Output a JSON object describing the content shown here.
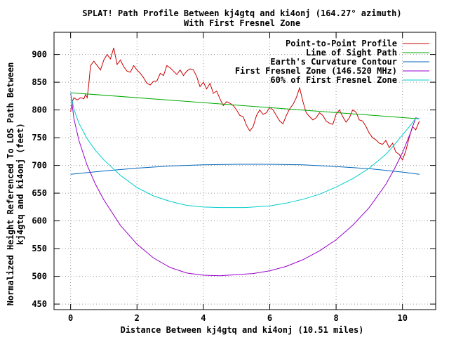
{
  "chart_data": {
    "type": "line",
    "title": "SPLAT! Path Profile Between kj4gtq and ki4onj (164.27° azimuth)",
    "subtitle": "With First Fresnel Zone",
    "xlabel": "Distance Between kj4gtq and ki4onj (10.51 miles)",
    "ylabel_line1": "Normalized Height Referenced To LOS Path Between",
    "ylabel_line2": "kj4gtq and ki4onj (feet)",
    "xlim": [
      -0.5,
      11.0
    ],
    "ylim": [
      440,
      940
    ],
    "xticks": [
      0,
      2,
      4,
      6,
      8,
      10
    ],
    "yticks": [
      450,
      500,
      550,
      600,
      650,
      700,
      750,
      800,
      850,
      900
    ],
    "grid": true,
    "legend_position": "top-right",
    "series": [
      {
        "name": "Point-to-Point Profile",
        "color": "#cc0000",
        "x": [
          0.0,
          0.05,
          0.1,
          0.15,
          0.2,
          0.3,
          0.4,
          0.45,
          0.5,
          0.55,
          0.6,
          0.7,
          0.8,
          0.9,
          1.0,
          1.1,
          1.2,
          1.3,
          1.4,
          1.5,
          1.6,
          1.7,
          1.8,
          1.9,
          2.0,
          2.1,
          2.2,
          2.3,
          2.4,
          2.5,
          2.6,
          2.7,
          2.8,
          2.9,
          3.0,
          3.1,
          3.2,
          3.3,
          3.4,
          3.5,
          3.6,
          3.7,
          3.8,
          3.9,
          4.0,
          4.1,
          4.2,
          4.3,
          4.4,
          4.5,
          4.6,
          4.7,
          4.8,
          4.9,
          5.0,
          5.1,
          5.2,
          5.3,
          5.4,
          5.5,
          5.6,
          5.7,
          5.8,
          5.9,
          6.0,
          6.1,
          6.2,
          6.3,
          6.4,
          6.5,
          6.6,
          6.7,
          6.8,
          6.9,
          7.0,
          7.1,
          7.2,
          7.3,
          7.4,
          7.5,
          7.6,
          7.7,
          7.8,
          7.9,
          8.0,
          8.1,
          8.2,
          8.3,
          8.4,
          8.5,
          8.6,
          8.7,
          8.8,
          8.9,
          9.0,
          9.1,
          9.2,
          9.3,
          9.4,
          9.5,
          9.6,
          9.7,
          9.8,
          9.9,
          10.0,
          10.1,
          10.2,
          10.3,
          10.4,
          10.51
        ],
        "values": [
          797,
          815,
          822,
          820,
          818,
          822,
          820,
          828,
          822,
          848,
          880,
          888,
          880,
          872,
          890,
          900,
          892,
          912,
          882,
          890,
          878,
          870,
          868,
          880,
          872,
          866,
          858,
          848,
          845,
          852,
          852,
          866,
          862,
          880,
          876,
          870,
          864,
          872,
          862,
          870,
          874,
          872,
          860,
          842,
          850,
          838,
          848,
          830,
          834,
          820,
          808,
          815,
          812,
          808,
          800,
          790,
          788,
          772,
          762,
          770,
          790,
          800,
          792,
          795,
          805,
          800,
          790,
          780,
          775,
          790,
          802,
          810,
          822,
          840,
          815,
          795,
          788,
          782,
          786,
          795,
          790,
          780,
          776,
          774,
          792,
          800,
          788,
          778,
          786,
          800,
          796,
          782,
          780,
          770,
          758,
          750,
          746,
          740,
          738,
          745,
          732,
          740,
          724,
          720,
          710,
          726,
          750,
          770,
          764,
          780
        ]
      },
      {
        "name": "Line of Sight Path",
        "color": "#00aa00",
        "x": [
          0.0,
          10.51
        ],
        "values": [
          831,
          784
        ]
      },
      {
        "name": "Earth's Curvature Contour",
        "color": "#0066bb",
        "x": [
          0.0,
          1.0,
          2.0,
          3.0,
          4.0,
          5.0,
          5.25,
          6.0,
          7.0,
          8.0,
          9.0,
          10.0,
          10.51
        ],
        "values": [
          684,
          690,
          695,
          699,
          701,
          702,
          702,
          702,
          701,
          698,
          694,
          688,
          684
        ]
      },
      {
        "name": "First Fresnel Zone (146.520 MHz)",
        "color": "#9900cc",
        "x": [
          0.0,
          0.1,
          0.25,
          0.5,
          0.75,
          1.0,
          1.5,
          2.0,
          2.5,
          3.0,
          3.5,
          4.0,
          4.5,
          5.0,
          5.25,
          5.5,
          6.0,
          6.5,
          7.0,
          7.5,
          8.0,
          8.5,
          9.0,
          9.5,
          9.75,
          10.0,
          10.25,
          10.4,
          10.51
        ],
        "values": [
          831,
          784,
          745,
          700,
          666,
          638,
          592,
          558,
          533,
          516,
          506,
          502,
          501,
          503,
          504,
          505,
          510,
          518,
          530,
          546,
          566,
          592,
          624,
          666,
          693,
          723,
          760,
          786,
          784
        ]
      },
      {
        "name": "60% of First Fresnel Zone",
        "color": "#00cccc",
        "x": [
          0.0,
          0.1,
          0.25,
          0.5,
          0.75,
          1.0,
          1.5,
          2.0,
          2.5,
          3.0,
          3.5,
          4.0,
          4.5,
          5.0,
          5.25,
          5.5,
          6.0,
          6.5,
          7.0,
          7.5,
          8.0,
          8.5,
          9.0,
          9.5,
          9.75,
          10.0,
          10.25,
          10.4,
          10.51
        ],
        "values": [
          831,
          801,
          776,
          748,
          727,
          710,
          682,
          660,
          645,
          635,
          628,
          625,
          624,
          624,
          624,
          625,
          627,
          632,
          639,
          648,
          661,
          676,
          695,
          720,
          737,
          755,
          773,
          785,
          784
        ]
      }
    ]
  }
}
